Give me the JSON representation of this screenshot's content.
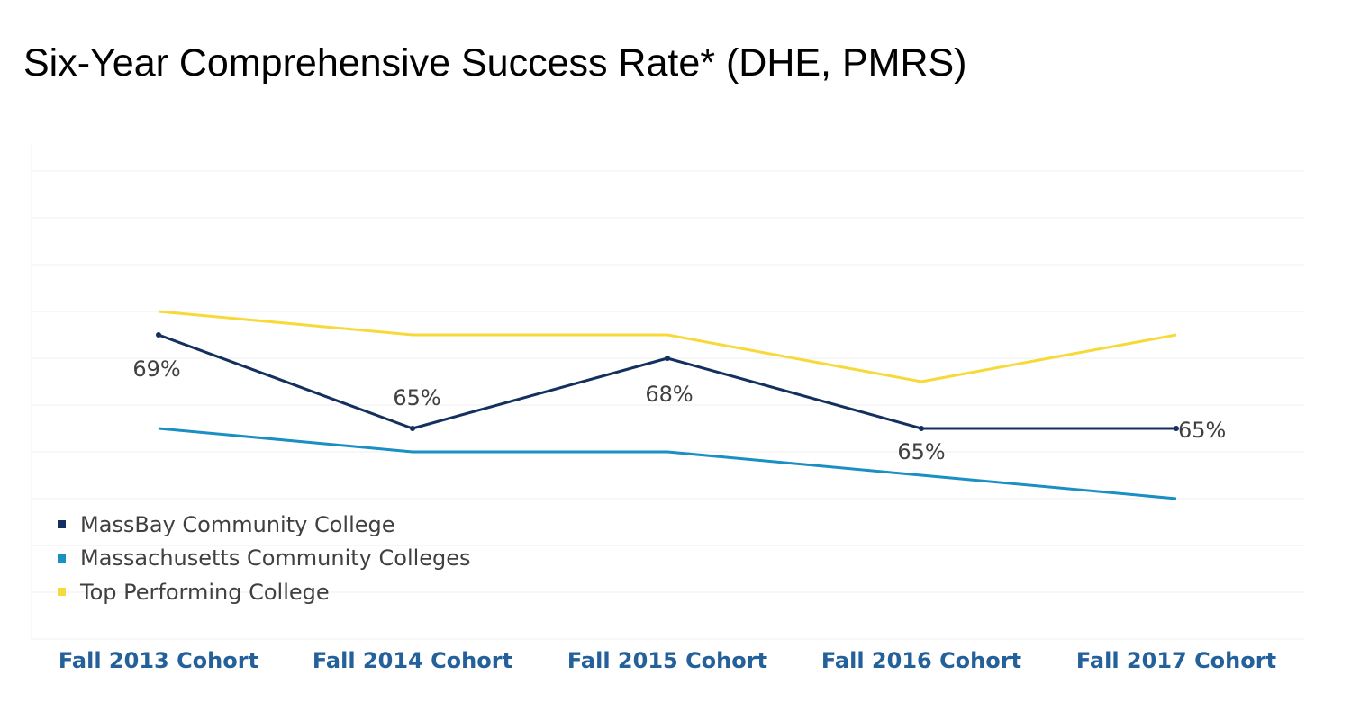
{
  "title": "Six-Year Comprehensive Success Rate* (DHE, PMRS)",
  "chart_data": {
    "type": "line",
    "categories": [
      "Fall 2013 Cohort",
      "Fall 2014 Cohort",
      "Fall 2015 Cohort",
      "Fall 2016 Cohort",
      "Fall 2017 Cohort"
    ],
    "series": [
      {
        "name": "MassBay Community College",
        "color": "#14305e",
        "values": [
          69,
          65,
          68,
          65,
          65
        ],
        "data_labels": [
          "69%",
          "65%",
          "68%",
          "65%",
          "65%"
        ]
      },
      {
        "name": "Massachusetts Community Colleges",
        "color": "#1a8fc4",
        "values": [
          65,
          64,
          64,
          63,
          62
        ]
      },
      {
        "name": "Top Performing College",
        "color": "#f8d93a",
        "values": [
          70,
          69,
          69,
          67,
          69
        ]
      }
    ],
    "ylim": [
      56,
      76
    ],
    "grid": true,
    "legend_position": "bottom-left",
    "xlabel": "",
    "ylabel": ""
  }
}
